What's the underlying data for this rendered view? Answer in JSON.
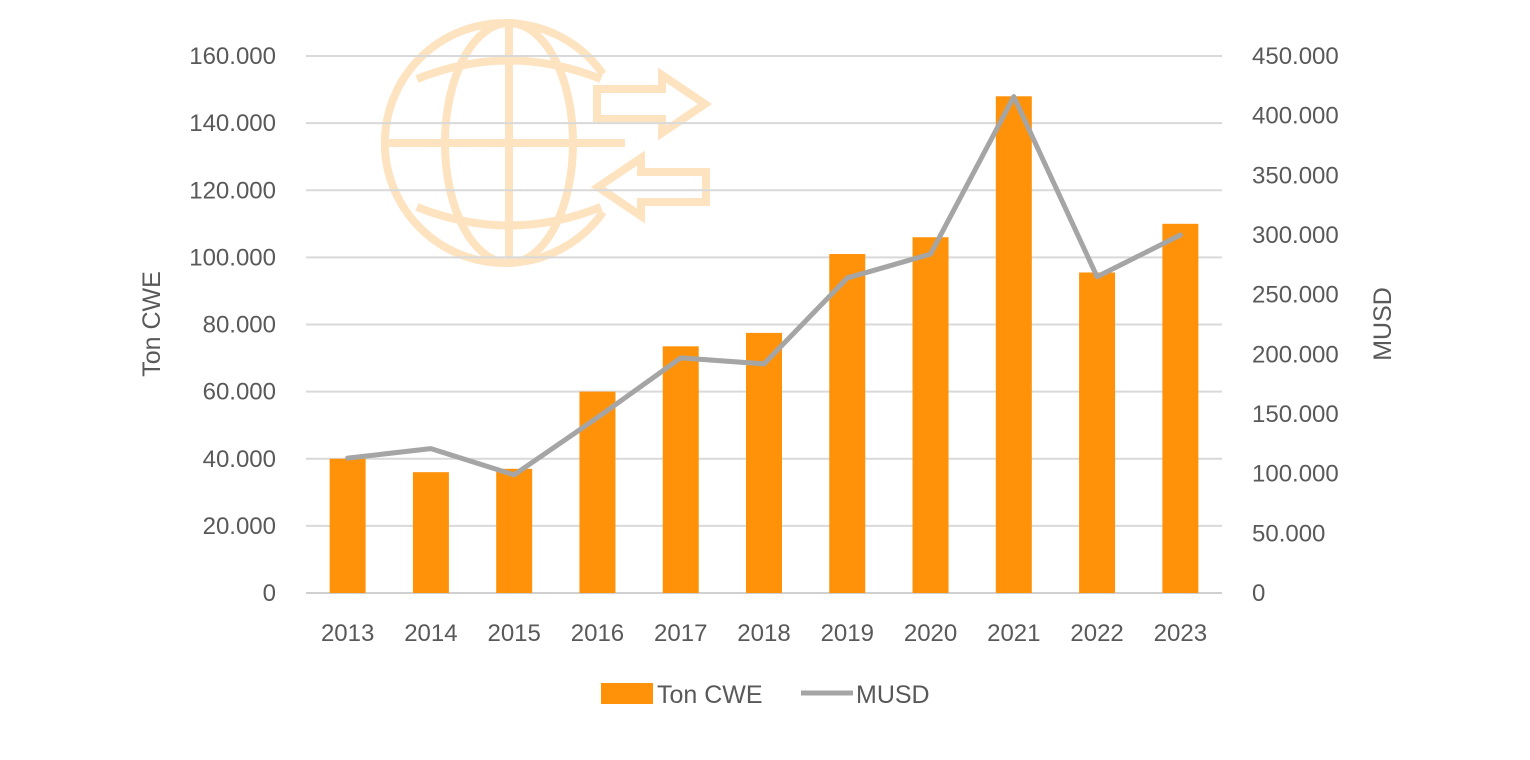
{
  "chart_data": {
    "type": "bar",
    "categories": [
      "2013",
      "2014",
      "2015",
      "2016",
      "2017",
      "2018",
      "2019",
      "2020",
      "2021",
      "2022",
      "2023"
    ],
    "series": [
      {
        "name": "Ton CWE",
        "kind": "bar",
        "axis": "left",
        "color": "#FF9208",
        "values": [
          40000,
          36000,
          37000,
          60000,
          73500,
          77500,
          101000,
          106000,
          148000,
          95500,
          110000
        ]
      },
      {
        "name": "MUSD",
        "kind": "line",
        "axis": "right",
        "color": "#A5A5A5",
        "values": [
          113000,
          121000,
          99000,
          147000,
          197000,
          192000,
          264000,
          284000,
          416000,
          265000,
          300000
        ]
      }
    ],
    "yLeft": {
      "label": "Ton CWE",
      "min": 0,
      "max": 160000,
      "ticks": [
        "0",
        "20.000",
        "40.000",
        "60.000",
        "80.000",
        "100.000",
        "120.000",
        "140.000",
        "160.000"
      ]
    },
    "yRight": {
      "label": "MUSD",
      "min": 0,
      "max": 450000,
      "ticks": [
        "0",
        "50.000",
        "100.000",
        "150.000",
        "200.000",
        "250.000",
        "300.000",
        "350.000",
        "400.000",
        "450.000"
      ]
    },
    "legend": {
      "position": "bottom",
      "items": [
        "Ton CWE",
        "MUSD"
      ]
    },
    "decoration": {
      "icon": "globe-exchange-icon",
      "color": "#FDE3C0"
    }
  }
}
